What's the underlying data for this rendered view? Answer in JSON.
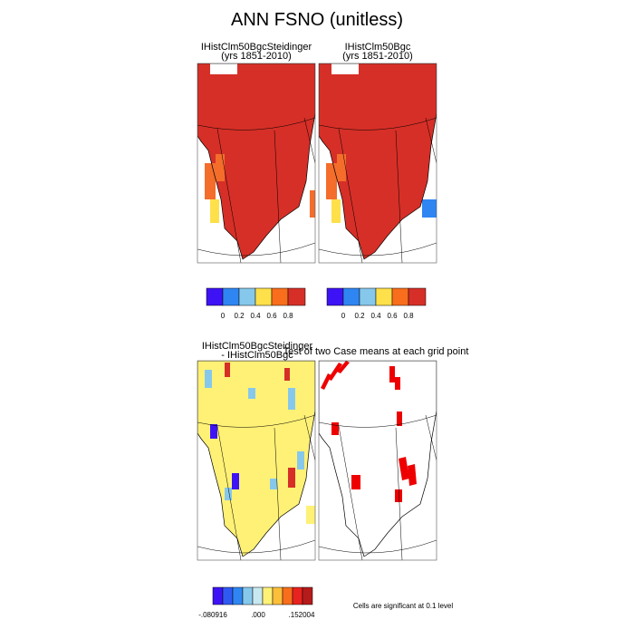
{
  "title": "ANN FSNO (unitless)",
  "panels": [
    {
      "title": "IHistClm50BgcSteidinger",
      "subtitle": "(yrs 1851-2010)",
      "colorbar_labels": [
        "0",
        "0.2",
        "0.4",
        "0.6",
        "0.8"
      ]
    },
    {
      "title": "IHistClm50Bgc",
      "subtitle": "(yrs 1851-2010)",
      "colorbar_labels": [
        "0",
        "0.2",
        "0.4",
        "0.6",
        "0.8"
      ]
    },
    {
      "title": "IHistClm50BgcSteidinger",
      "subtitle": "- IHistClm50Bgc",
      "colorbar_labels": [
        "-.080916",
        ".000",
        ".152004"
      ]
    },
    {
      "title": "Test of two Case means at each grid point",
      "note": "Cells are significant at 0.1 level"
    }
  ]
}
